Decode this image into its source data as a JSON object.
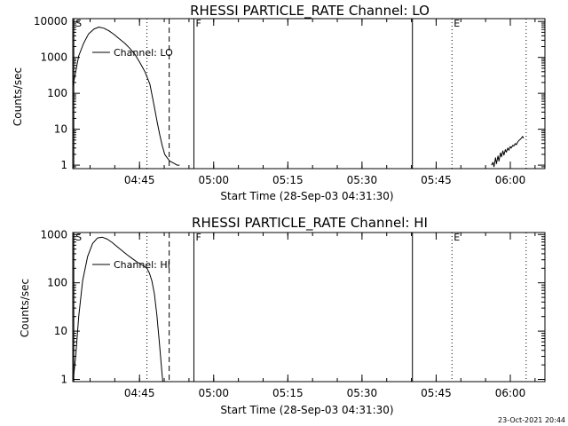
{
  "chart_data": [
    {
      "type": "line",
      "title": "RHESSI PARTICLE_RATE Channel: LO",
      "xlabel": "Start Time (28-Sep-03 04:31:30)",
      "ylabel": "Counts/sec",
      "y_scale": "log",
      "ylim": [
        0.8,
        12000
      ],
      "xlim_minutes": [
        0,
        95.5
      ],
      "x_tick_labels": [
        "04:45",
        "05:00",
        "05:15",
        "05:30",
        "05:45",
        "06:00"
      ],
      "x_tick_minutes": [
        13.5,
        28.5,
        43.5,
        58.5,
        73.5,
        88.5
      ],
      "y_tick_labels": [
        "1",
        "10",
        "100",
        "1000",
        "10000"
      ],
      "y_tick_values": [
        1,
        10,
        100,
        1000,
        10000
      ],
      "legend": "Channel: LO",
      "markers": [
        {
          "label": "S",
          "minute": 0.2,
          "style": "solid"
        },
        {
          "label": "",
          "minute": 15.0,
          "style": "dotted"
        },
        {
          "label": "",
          "minute": 19.5,
          "style": "dashed"
        },
        {
          "label": "F",
          "minute": 24.5,
          "style": "solid"
        },
        {
          "label": "",
          "minute": 68.7,
          "style": "solid"
        },
        {
          "label": "E",
          "minute": 76.7,
          "style": "dotted"
        },
        {
          "label": "",
          "minute": 91.7,
          "style": "dotted"
        }
      ],
      "series": [
        {
          "x": [
            0,
            0.6,
            1.2,
            2.2,
            3.2,
            4.3,
            5.3,
            6.3,
            7.3,
            8.4,
            9.4,
            10.5,
            11.5,
            12.6,
            13.6,
            14.6,
            15.6,
            16.1,
            16.6,
            17.1,
            17.6,
            18.1,
            18.6,
            19.1,
            19.6,
            20.1,
            20.6,
            21.1,
            21.6
          ],
          "y": [
            150,
            400,
            1100,
            2500,
            4500,
            6200,
            7000,
            6500,
            5500,
            4300,
            3300,
            2500,
            1800,
            1200,
            700,
            400,
            180,
            80,
            35,
            15,
            7,
            3.5,
            2,
            1.6,
            1.3,
            1.2,
            1.1,
            1.0,
            1.0
          ]
        },
        {
          "x": [
            84.7,
            85.0,
            85.2,
            85.5,
            85.7,
            86.0,
            86.2,
            86.5,
            86.7,
            87.0,
            87.2,
            87.5,
            87.7,
            88.0,
            88.2,
            88.5,
            88.7,
            89.0,
            89.2,
            89.5,
            89.7,
            90.0,
            90.2,
            90.5,
            90.7,
            91.0,
            91.2
          ],
          "y": [
            1.0,
            1.2,
            0.9,
            1.6,
            1.1,
            1.8,
            1.3,
            2.2,
            1.7,
            2.5,
            1.9,
            2.7,
            2.3,
            3.0,
            2.6,
            3.3,
            3.0,
            3.6,
            3.4,
            4.0,
            3.7,
            4.4,
            4.8,
            5.2,
            5.6,
            6.3,
            5.6
          ]
        }
      ]
    },
    {
      "type": "line",
      "title": "RHESSI PARTICLE_RATE Channel: HI",
      "xlabel": "Start Time (28-Sep-03 04:31:30)",
      "ylabel": "Counts/sec",
      "y_scale": "log",
      "ylim": [
        0.9,
        1100
      ],
      "xlim_minutes": [
        0,
        95.5
      ],
      "x_tick_labels": [
        "04:45",
        "05:00",
        "05:15",
        "05:30",
        "05:45",
        "06:00"
      ],
      "x_tick_minutes": [
        13.5,
        28.5,
        43.5,
        58.5,
        73.5,
        88.5
      ],
      "y_tick_labels": [
        "1",
        "10",
        "100",
        "1000"
      ],
      "y_tick_values": [
        1,
        10,
        100,
        1000
      ],
      "legend": "Channel: HI",
      "markers": [
        {
          "label": "S",
          "minute": 0.2,
          "style": "solid"
        },
        {
          "label": "",
          "minute": 15.0,
          "style": "dotted"
        },
        {
          "label": "",
          "minute": 19.5,
          "style": "dashed"
        },
        {
          "label": "F",
          "minute": 24.5,
          "style": "solid"
        },
        {
          "label": "",
          "minute": 68.7,
          "style": "solid"
        },
        {
          "label": "E",
          "minute": 76.7,
          "style": "dotted"
        },
        {
          "label": "",
          "minute": 91.7,
          "style": "dotted"
        }
      ],
      "series": [
        {
          "x": [
            0.1,
            0.6,
            1.2,
            2.0,
            3.0,
            4.0,
            5.0,
            6.0,
            7.0,
            8.0,
            9.0,
            10.0,
            11.0,
            12.0,
            13.0,
            14.0,
            15.0,
            15.5,
            16.0,
            16.5,
            17.0,
            17.5,
            18.0,
            18.2
          ],
          "y": [
            1.0,
            3,
            20,
            110,
            350,
            650,
            850,
            880,
            800,
            680,
            560,
            460,
            380,
            320,
            270,
            235,
            200,
            160,
            110,
            60,
            22,
            6,
            1.5,
            0.9
          ]
        }
      ]
    }
  ],
  "timestamp": "23-Oct-2021 20:44"
}
